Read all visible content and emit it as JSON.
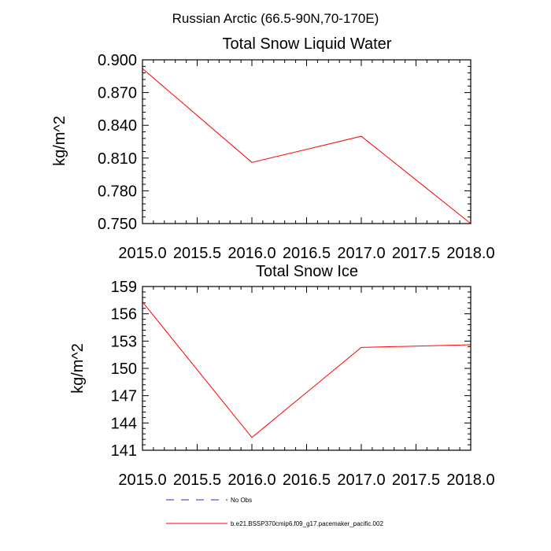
{
  "suptitle": "Russian Arctic (66.5-90N,70-170E)",
  "legend": [
    {
      "label": "No Obs",
      "color": "#2b2bbf",
      "style": "dashed"
    },
    {
      "label": "b.e21.BSSP370cmip6.f09_g17.pacemaker_pacific.002",
      "color": "#ff0000",
      "style": "solid"
    }
  ],
  "chart_data": [
    {
      "type": "line",
      "title": "Total Snow Liquid Water",
      "ylabel": "kg/m^2",
      "xlabel": "",
      "xlim": [
        2015.0,
        2018.0
      ],
      "ylim": [
        0.75,
        0.9
      ],
      "xticks": [
        2015.0,
        2015.5,
        2016.0,
        2016.5,
        2017.0,
        2017.5,
        2018.0
      ],
      "xtick_labels": [
        "2015.0",
        "2015.5",
        "2016.0",
        "2016.5",
        "2017.0",
        "2017.5",
        "2018.0"
      ],
      "yticks": [
        0.75,
        0.78,
        0.81,
        0.84,
        0.87,
        0.9
      ],
      "ytick_labels": [
        "0.750",
        "0.780",
        "0.810",
        "0.840",
        "0.870",
        "0.900"
      ],
      "series": [
        {
          "color": "#ff0000",
          "x": [
            2015,
            2016,
            2017,
            2018
          ],
          "y": [
            0.892,
            0.806,
            0.83,
            0.75
          ]
        }
      ]
    },
    {
      "type": "line",
      "title": "Total Snow Ice",
      "ylabel": "kg/m^2",
      "xlabel": "",
      "xlim": [
        2015.0,
        2018.0
      ],
      "ylim": [
        141,
        159
      ],
      "xticks": [
        2015.0,
        2015.5,
        2016.0,
        2016.5,
        2017.0,
        2017.5,
        2018.0
      ],
      "xtick_labels": [
        "2015.0",
        "2015.5",
        "2016.0",
        "2016.5",
        "2017.0",
        "2017.5",
        "2018.0"
      ],
      "yticks": [
        141,
        144,
        147,
        150,
        153,
        156,
        159
      ],
      "ytick_labels": [
        "141",
        "144",
        "147",
        "150",
        "153",
        "156",
        "159"
      ],
      "series": [
        {
          "color": "#ff0000",
          "x": [
            2015,
            2016,
            2017,
            2018
          ],
          "y": [
            157.3,
            142.4,
            152.3,
            152.6
          ]
        }
      ]
    }
  ]
}
